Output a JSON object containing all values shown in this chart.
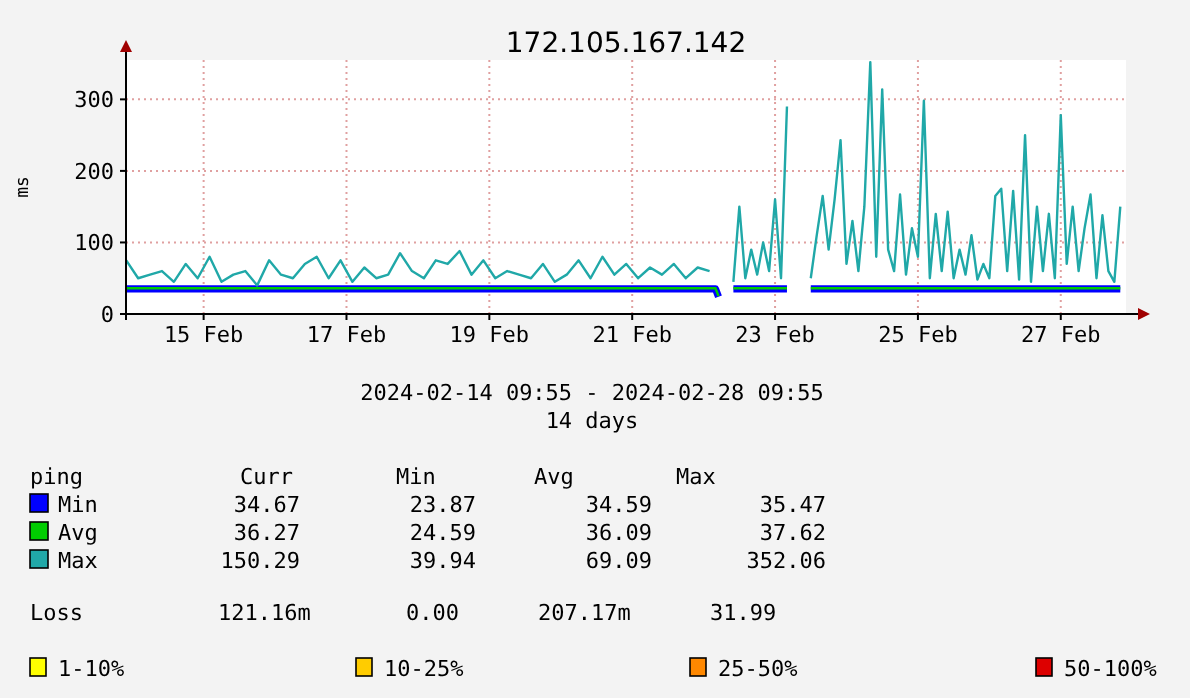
{
  "chart_data": {
    "type": "line",
    "title": "172.105.167.142",
    "ylabel": "ms",
    "xlim": [
      "2024-02-14T09:55",
      "2024-02-28T09:55"
    ],
    "xticks": [
      {
        "value": "2024-02-15T12:00",
        "label": "15 Feb"
      },
      {
        "value": "2024-02-17T12:00",
        "label": "17 Feb"
      },
      {
        "value": "2024-02-19T12:00",
        "label": "19 Feb"
      },
      {
        "value": "2024-02-21T12:00",
        "label": "21 Feb"
      },
      {
        "value": "2024-02-23T12:00",
        "label": "23 Feb"
      },
      {
        "value": "2024-02-25T12:00",
        "label": "25 Feb"
      },
      {
        "value": "2024-02-27T12:00",
        "label": "27 Feb"
      }
    ],
    "ylim": [
      0,
      355
    ],
    "yticks": [
      0,
      100,
      200,
      300
    ],
    "grid": true,
    "legend": "bottom",
    "marker": "none",
    "line_style": "solid",
    "series": [
      {
        "name": "Min",
        "color": "#0000ff",
        "x": [
          "2024-02-14T10:00",
          "2024-02-18T12:00",
          "2024-02-22T16:00",
          "2024-02-22T17:00",
          "2024-02-22T19:00",
          "2024-02-22T22:00",
          "2024-02-23T16:00",
          "2024-02-23T20:00",
          "2024-02-24T00:00",
          "2024-02-28T08:00"
        ],
        "values": [
          35,
          35,
          35,
          24,
          null,
          35,
          35,
          null,
          35,
          35
        ]
      },
      {
        "name": "Avg",
        "color": "#00cc00",
        "x": [
          "2024-02-14T10:00",
          "2024-02-18T12:00",
          "2024-02-22T16:00",
          "2024-02-22T17:00",
          "2024-02-22T19:00",
          "2024-02-22T22:00",
          "2024-02-23T16:00",
          "2024-02-23T20:00",
          "2024-02-24T00:00",
          "2024-02-28T08:00"
        ],
        "values": [
          36,
          36,
          36,
          25,
          null,
          36,
          36,
          null,
          36,
          36
        ]
      },
      {
        "name": "Max",
        "color": "#20a8a8",
        "x": [
          "2024-02-14T10:00",
          "2024-02-14T14:00",
          "2024-02-14T18:00",
          "2024-02-14T22:00",
          "2024-02-15T02:00",
          "2024-02-15T06:00",
          "2024-02-15T10:00",
          "2024-02-15T14:00",
          "2024-02-15T18:00",
          "2024-02-15T22:00",
          "2024-02-16T02:00",
          "2024-02-16T06:00",
          "2024-02-16T10:00",
          "2024-02-16T14:00",
          "2024-02-16T18:00",
          "2024-02-16T22:00",
          "2024-02-17T02:00",
          "2024-02-17T06:00",
          "2024-02-17T10:00",
          "2024-02-17T14:00",
          "2024-02-17T18:00",
          "2024-02-17T22:00",
          "2024-02-18T02:00",
          "2024-02-18T06:00",
          "2024-02-18T10:00",
          "2024-02-18T14:00",
          "2024-02-18T18:00",
          "2024-02-18T22:00",
          "2024-02-19T02:00",
          "2024-02-19T06:00",
          "2024-02-19T10:00",
          "2024-02-19T14:00",
          "2024-02-19T18:00",
          "2024-02-19T22:00",
          "2024-02-20T02:00",
          "2024-02-20T06:00",
          "2024-02-20T10:00",
          "2024-02-20T14:00",
          "2024-02-20T18:00",
          "2024-02-20T22:00",
          "2024-02-21T02:00",
          "2024-02-21T06:00",
          "2024-02-21T10:00",
          "2024-02-21T14:00",
          "2024-02-21T18:00",
          "2024-02-21T22:00",
          "2024-02-22T02:00",
          "2024-02-22T06:00",
          "2024-02-22T10:00",
          "2024-02-22T14:00",
          "2024-02-22T19:00",
          "2024-02-22T22:00",
          "2024-02-23T00:00",
          "2024-02-23T02:00",
          "2024-02-23T04:00",
          "2024-02-23T06:00",
          "2024-02-23T08:00",
          "2024-02-23T10:00",
          "2024-02-23T12:00",
          "2024-02-23T14:00",
          "2024-02-23T16:00",
          "2024-02-23T20:00",
          "2024-02-24T00:00",
          "2024-02-24T02:00",
          "2024-02-24T04:00",
          "2024-02-24T06:00",
          "2024-02-24T08:00",
          "2024-02-24T10:00",
          "2024-02-24T12:00",
          "2024-02-24T14:00",
          "2024-02-24T16:00",
          "2024-02-24T18:00",
          "2024-02-24T20:00",
          "2024-02-24T22:00",
          "2024-02-25T00:00",
          "2024-02-25T02:00",
          "2024-02-25T04:00",
          "2024-02-25T06:00",
          "2024-02-25T08:00",
          "2024-02-25T10:00",
          "2024-02-25T12:00",
          "2024-02-25T14:00",
          "2024-02-25T16:00",
          "2024-02-25T18:00",
          "2024-02-25T20:00",
          "2024-02-25T22:00",
          "2024-02-26T00:00",
          "2024-02-26T02:00",
          "2024-02-26T04:00",
          "2024-02-26T06:00",
          "2024-02-26T08:00",
          "2024-02-26T10:00",
          "2024-02-26T12:00",
          "2024-02-26T14:00",
          "2024-02-26T16:00",
          "2024-02-26T18:00",
          "2024-02-26T20:00",
          "2024-02-26T22:00",
          "2024-02-27T00:00",
          "2024-02-27T02:00",
          "2024-02-27T04:00",
          "2024-02-27T06:00",
          "2024-02-27T08:00",
          "2024-02-27T10:00",
          "2024-02-27T12:00",
          "2024-02-27T14:00",
          "2024-02-27T16:00",
          "2024-02-27T18:00",
          "2024-02-27T20:00",
          "2024-02-27T22:00",
          "2024-02-28T00:00",
          "2024-02-28T02:00",
          "2024-02-28T04:00",
          "2024-02-28T06:00",
          "2024-02-28T08:00"
        ],
        "values": [
          75,
          50,
          55,
          60,
          45,
          70,
          50,
          80,
          45,
          55,
          60,
          40,
          75,
          55,
          50,
          70,
          80,
          50,
          75,
          45,
          65,
          50,
          55,
          85,
          60,
          50,
          75,
          70,
          88,
          55,
          75,
          50,
          60,
          55,
          50,
          70,
          45,
          55,
          75,
          50,
          80,
          55,
          70,
          50,
          65,
          55,
          70,
          50,
          65,
          60,
          null,
          45,
          150,
          50,
          90,
          55,
          100,
          60,
          160,
          50,
          290,
          null,
          50,
          110,
          165,
          90,
          160,
          243,
          70,
          130,
          60,
          150,
          352,
          80,
          314,
          90,
          60,
          167,
          55,
          120,
          80,
          298,
          50,
          140,
          60,
          143,
          50,
          90,
          55,
          110,
          48,
          70,
          50,
          165,
          175,
          60,
          172,
          48,
          250,
          45,
          150,
          60,
          140,
          50,
          278,
          70,
          150,
          60,
          120,
          167,
          50,
          138,
          60,
          45,
          150
        ]
      }
    ],
    "annotations": [
      "2024-02-14 09:55 - 2024-02-28 09:55",
      "14 days",
      "ping\tCurr\tMin\tAvg\tMax",
      "34.67\t23.87\t34.59\t35.47",
      "36.27\t24.59\t36.09\t37.62",
      "150.29\t39.94\t69.09\t352.06",
      "Loss\t121.16m\t0.00\t207.17m\t31.99",
      "1-10%",
      "10-25%",
      "25-50%",
      "50-100%"
    ]
  }
}
